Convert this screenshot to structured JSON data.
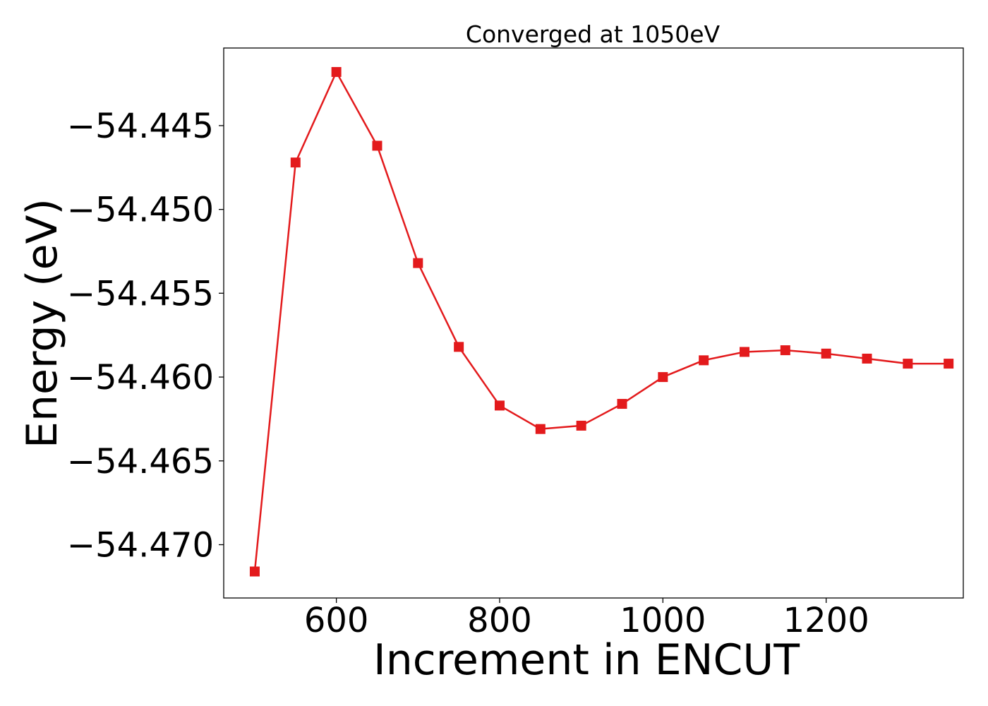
{
  "chart_data": {
    "type": "line",
    "title": "Converged at 1050eV",
    "xlabel": "Increment in ENCUT",
    "ylabel": "Energy (eV)",
    "xlim": [
      462,
      1368
    ],
    "ylim": [
      -54.47318,
      -54.44037
    ],
    "xticks": [
      600,
      800,
      1000,
      1200
    ],
    "xtick_labels": [
      "600",
      "800",
      "1000",
      "1200"
    ],
    "yticks": [
      -54.445,
      -54.45,
      -54.455,
      -54.46,
      -54.465,
      -54.47
    ],
    "ytick_labels": [
      "−54.445",
      "−54.450",
      "−54.455",
      "−54.460",
      "−54.465",
      "−54.470"
    ],
    "grid": false,
    "series": [
      {
        "color": "#e31a1c",
        "marker": "square",
        "x": [
          500,
          550,
          600,
          650,
          700,
          750,
          800,
          850,
          900,
          950,
          1000,
          1050,
          1100,
          1150,
          1200,
          1250,
          1300,
          1350
        ],
        "y": [
          -54.4716,
          -54.4472,
          -54.4418,
          -54.4462,
          -54.4532,
          -54.4582,
          -54.4617,
          -54.4631,
          -54.4629,
          -54.4616,
          -54.46,
          -54.459,
          -54.4585,
          -54.4584,
          -54.4586,
          -54.4589,
          -54.4592,
          -54.4592
        ]
      }
    ]
  }
}
